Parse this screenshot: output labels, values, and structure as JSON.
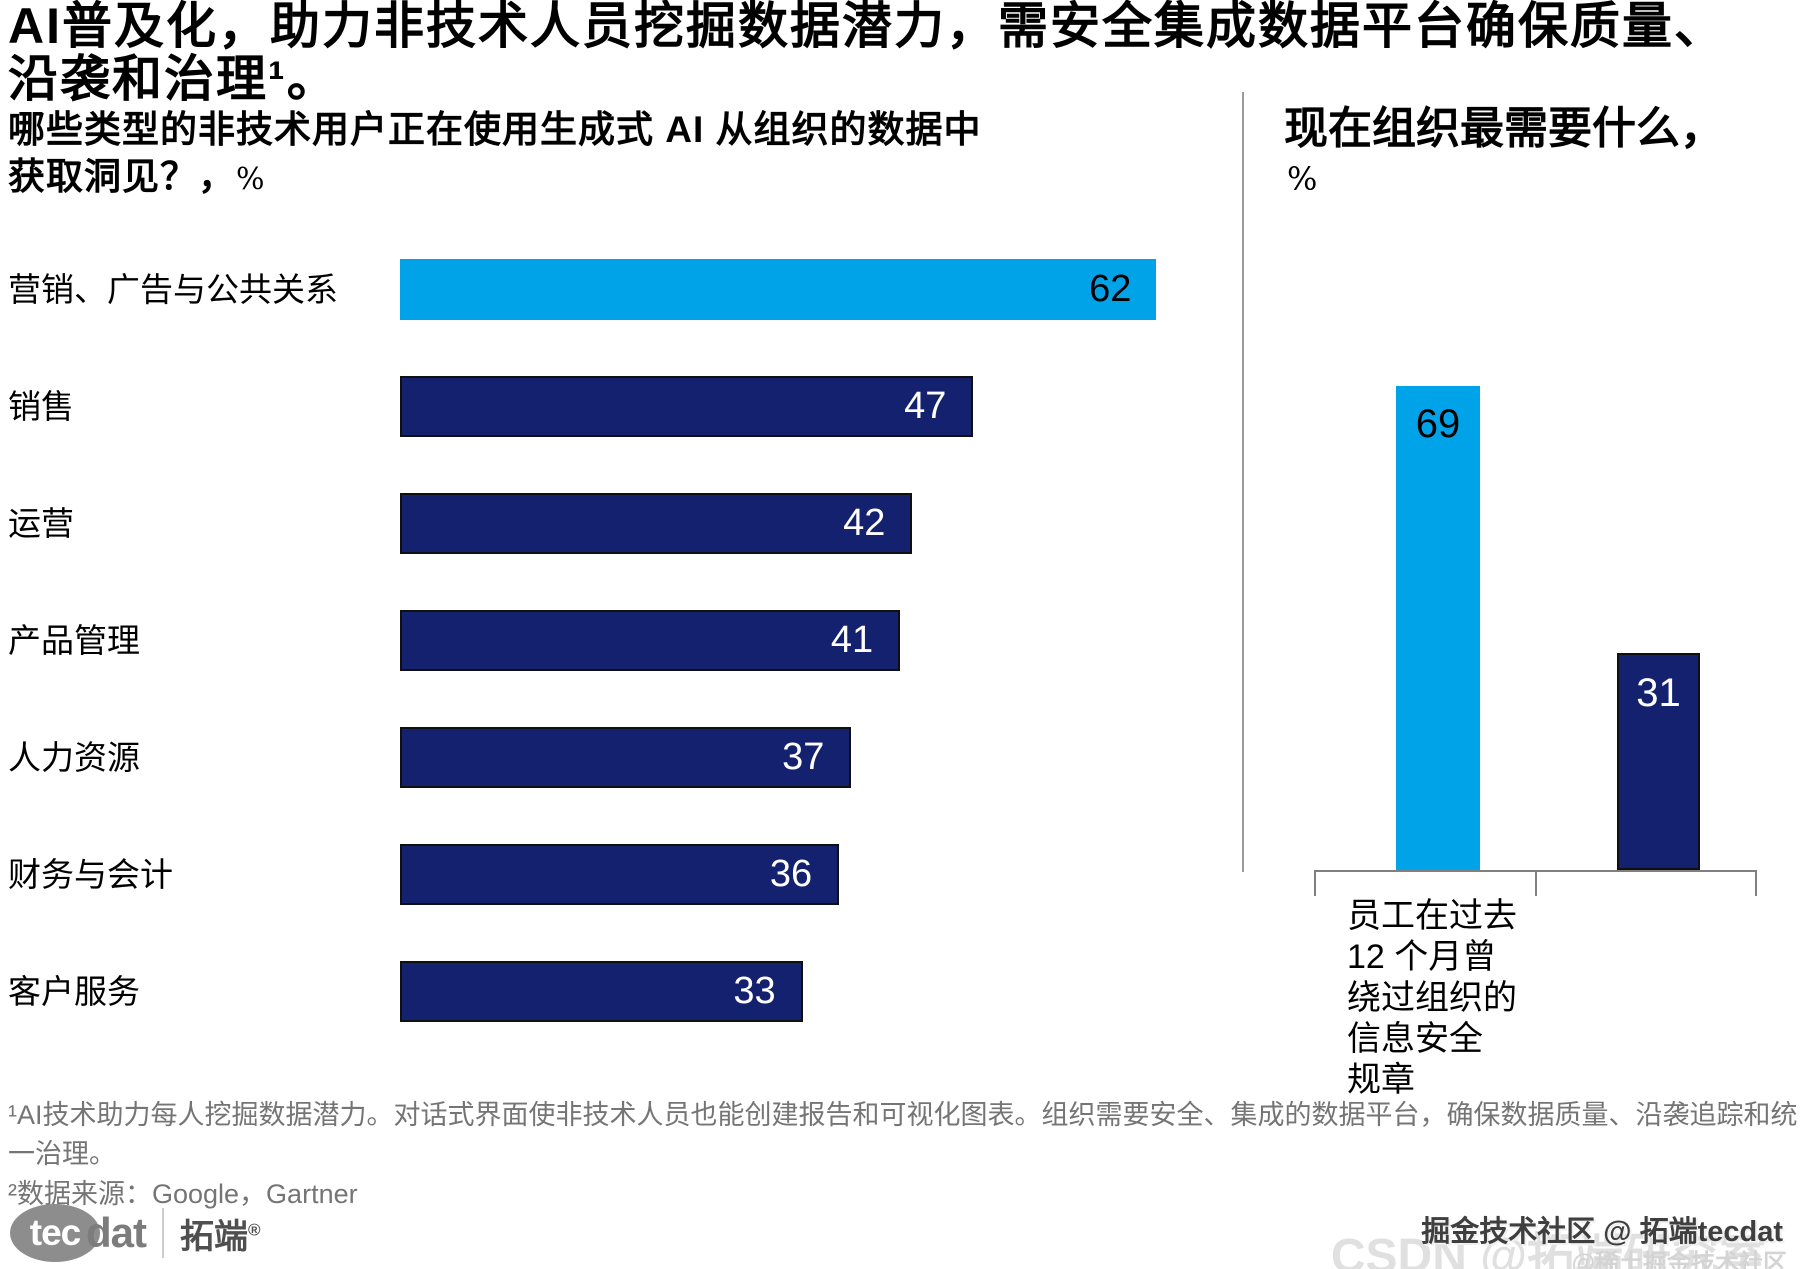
{
  "title": "AI普及化，助力非技术人员挖掘数据潜力，需安全集成数据平台确保质量、\n沿袭和治理¹。",
  "colors": {
    "cyan": "#00a2e8",
    "navy": "#14216e",
    "axis_gray": "#808080",
    "divider_gray": "#9a9a9a",
    "footnote_gray": "#757575"
  },
  "left_chart": {
    "question": "哪些类型的非技术用户正在使用生成式 AI 从组织的数据中获取洞见？，",
    "unit": "%",
    "bars": [
      {
        "category": "营销、广告与公共关系",
        "value": 62,
        "color": "#00a2e8",
        "label_color": "#000000"
      },
      {
        "category": "销售",
        "value": 47,
        "color": "#14216e",
        "label_color": "#ffffff"
      },
      {
        "category": "运营",
        "value": 42,
        "color": "#14216e",
        "label_color": "#ffffff"
      },
      {
        "category": "产品管理",
        "value": 41,
        "color": "#14216e",
        "label_color": "#ffffff"
      },
      {
        "category": "人力资源",
        "value": 37,
        "color": "#14216e",
        "label_color": "#ffffff"
      },
      {
        "category": "财务与会计",
        "value": 36,
        "color": "#14216e",
        "label_color": "#ffffff"
      },
      {
        "category": "客户服务",
        "value": 33,
        "color": "#14216e",
        "label_color": "#ffffff"
      }
    ]
  },
  "right_chart": {
    "question": "现在组织最需要什么，",
    "unit": "%",
    "bars": [
      {
        "label": "员工在过去\n12 个月曾\n绕过组织的\n信息安全\n规章",
        "value": 69,
        "color": "#00a2e8",
        "label_color": "#000000"
      },
      {
        "label": "",
        "value": 31,
        "color": "#14216e",
        "label_color": "#ffffff"
      }
    ]
  },
  "footnotes": {
    "fn1": "¹AI技术助力每人挖掘数据潜力。对话式界面使非技术人员也能创建报告和可视化图表。组织需要安全、集成的数据平台，确保数据质量、沿袭追踪和统一治理。",
    "fn2": "²数据来源：Google，Gartner"
  },
  "logo": {
    "circle_text": "tec",
    "suffix": "dat",
    "cn_name": "拓端",
    "reg_mark": "®"
  },
  "watermarks": {
    "primary": "掘金技术社区 @ 拓端tecdat",
    "csdn": "CSDN @拓端研究室",
    "juejin": "@稀土掘金技术社区"
  },
  "chart_data": [
    {
      "type": "bar",
      "orientation": "horizontal",
      "title": "哪些类型的非技术用户正在使用生成式 AI 从组织的数据中获取洞见？，%",
      "categories": [
        "营销、广告与公共关系",
        "销售",
        "运营",
        "产品管理",
        "人力资源",
        "财务与会计",
        "客户服务"
      ],
      "values": [
        62,
        47,
        42,
        41,
        37,
        36,
        33
      ],
      "unit": "%",
      "data_labels": "inside-end",
      "grid": false,
      "legend": false,
      "axis_visible": false,
      "bar_colors": [
        "#00a2e8",
        "#14216e",
        "#14216e",
        "#14216e",
        "#14216e",
        "#14216e",
        "#14216e"
      ]
    },
    {
      "type": "bar",
      "orientation": "vertical",
      "title": "现在组织最需要什么，%",
      "categories": [
        "员工在过去12 个月曾绕过组织的信息安全规章",
        ""
      ],
      "values": [
        69,
        31
      ],
      "unit": "%",
      "data_labels": "inside-top",
      "grid": false,
      "legend": false,
      "axis_visible": true,
      "bar_colors": [
        "#00a2e8",
        "#14216e"
      ]
    }
  ]
}
